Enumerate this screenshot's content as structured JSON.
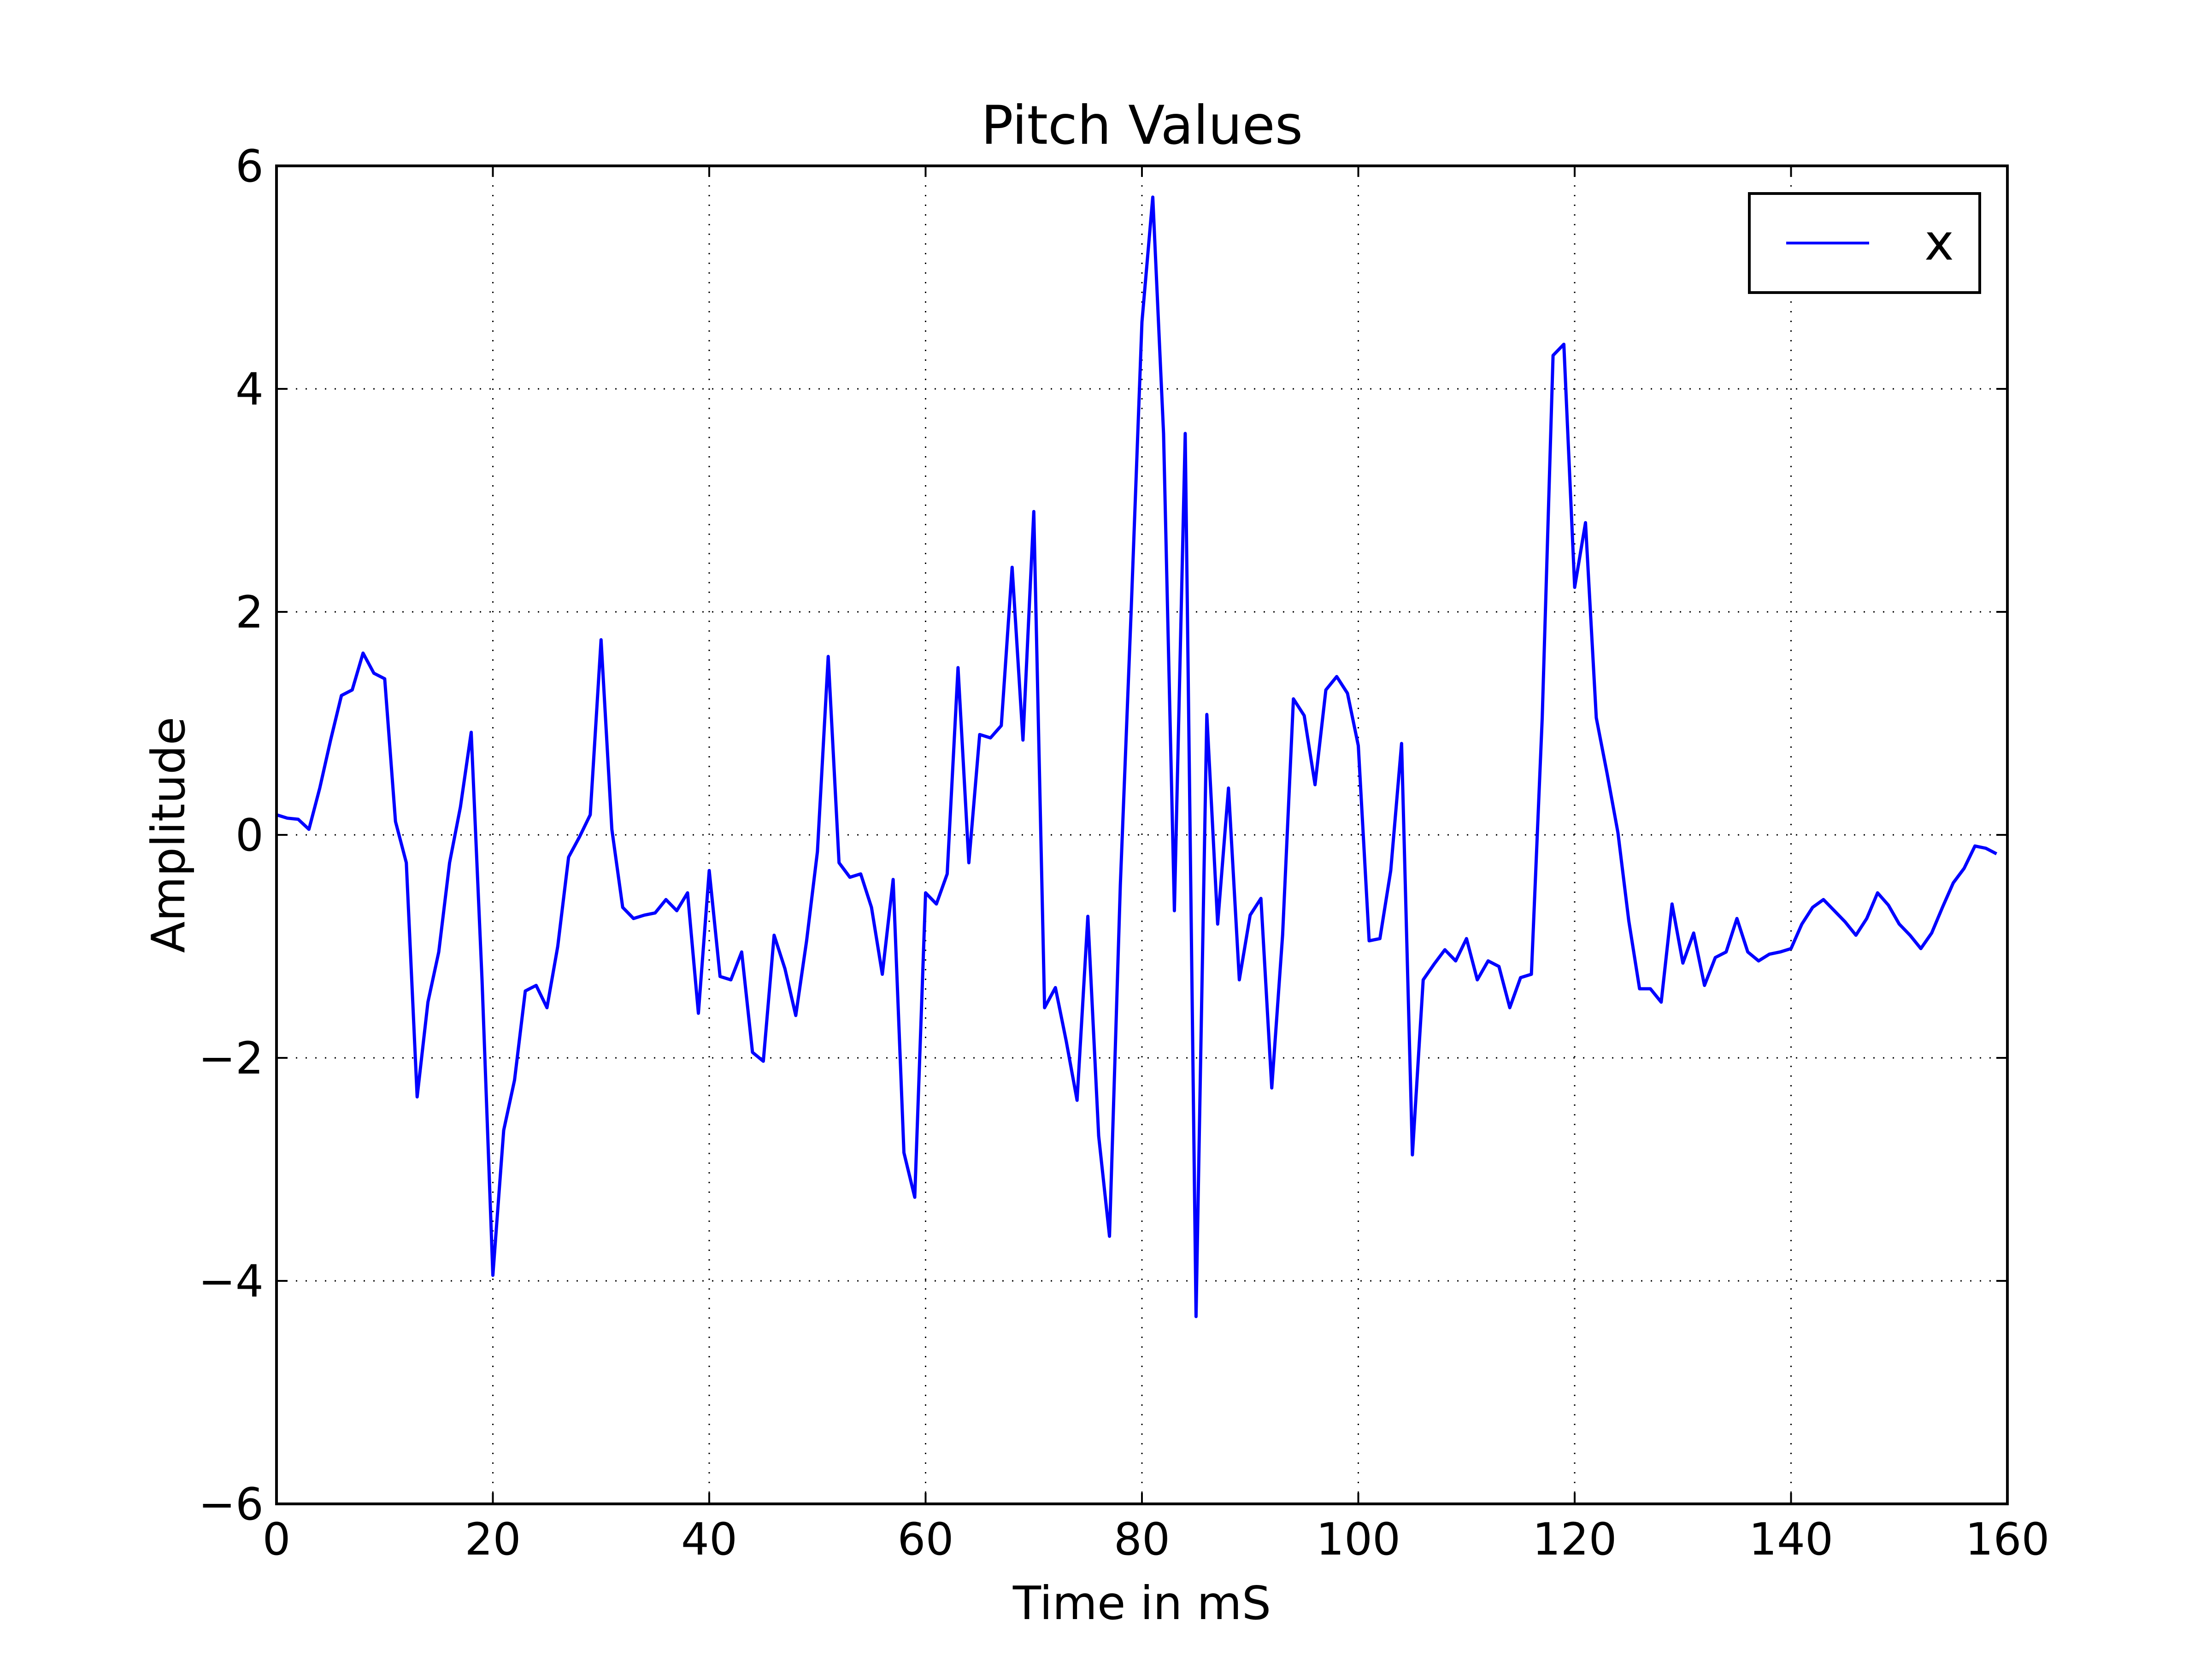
{
  "chart_data": {
    "type": "line",
    "title": "Pitch Values",
    "xlabel": "Time in mS",
    "ylabel": "Amplitude",
    "xlim": [
      0,
      160
    ],
    "ylim": [
      -6,
      6
    ],
    "xticks": [
      0,
      20,
      40,
      60,
      80,
      100,
      120,
      140,
      160
    ],
    "yticks": [
      -6,
      -4,
      -2,
      0,
      2,
      4,
      6
    ],
    "xtick_labels": [
      "0",
      "20",
      "40",
      "60",
      "80",
      "100",
      "120",
      "140",
      "160"
    ],
    "ytick_labels": [
      "−6",
      "−4",
      "−2",
      "0",
      "2",
      "4",
      "6"
    ],
    "grid": true,
    "legend_position": "top-right",
    "series": [
      {
        "name": "x",
        "color": "#0000ff",
        "x": [
          0,
          1,
          2,
          3,
          4,
          5,
          6,
          7,
          8,
          9,
          10,
          11,
          12,
          13,
          14,
          15,
          16,
          17,
          18,
          19,
          20,
          21,
          22,
          23,
          24,
          25,
          26,
          27,
          28,
          29,
          30,
          31,
          32,
          33,
          34,
          35,
          36,
          37,
          38,
          39,
          40,
          41,
          42,
          43,
          44,
          45,
          46,
          47,
          48,
          49,
          50,
          51,
          52,
          53,
          54,
          55,
          56,
          57,
          58,
          59,
          60,
          61,
          62,
          63,
          64,
          65,
          66,
          67,
          68,
          69,
          70,
          71,
          72,
          73,
          74,
          75,
          76,
          77,
          78,
          79,
          80,
          81,
          82,
          83,
          84,
          85,
          86,
          87,
          88,
          89,
          90,
          91,
          92,
          93,
          94,
          95,
          96,
          97,
          98,
          99,
          100,
          101,
          102,
          103,
          104,
          105,
          106,
          107,
          108,
          109,
          110,
          111,
          112,
          113,
          114,
          115,
          116,
          117,
          118,
          119,
          120,
          121,
          122,
          123,
          124,
          125,
          126,
          127,
          128,
          129,
          130,
          131,
          132,
          133,
          134,
          135,
          136,
          137,
          138,
          139,
          140,
          141,
          142,
          143,
          144,
          145,
          146,
          147,
          148,
          149,
          150,
          151,
          152,
          153,
          154,
          155,
          156,
          157,
          158,
          159
        ],
        "values": [
          0.18,
          0.15,
          0.14,
          0.05,
          0.42,
          0.85,
          1.25,
          1.3,
          1.63,
          1.45,
          1.4,
          0.12,
          -0.25,
          -2.35,
          -1.5,
          -1.05,
          -0.25,
          0.25,
          0.92,
          -1.3,
          -3.95,
          -2.65,
          -2.2,
          -1.4,
          -1.35,
          -1.55,
          -1.0,
          -0.2,
          -0.02,
          0.18,
          1.75,
          0.05,
          -0.65,
          -0.75,
          -0.72,
          -0.7,
          -0.58,
          -0.68,
          -0.52,
          -1.6,
          -0.32,
          -1.27,
          -1.3,
          -1.05,
          -1.95,
          -2.03,
          -0.9,
          -1.2,
          -1.62,
          -0.95,
          -0.15,
          1.6,
          -0.25,
          -0.38,
          -0.35,
          -0.65,
          -1.25,
          -0.4,
          -2.85,
          -3.25,
          -0.52,
          -0.62,
          -0.35,
          1.5,
          -0.25,
          0.9,
          0.87,
          0.98,
          2.4,
          0.85,
          2.9,
          -1.55,
          -1.37,
          -1.85,
          -2.38,
          -0.73,
          -2.7,
          -3.6,
          -0.45,
          2.0,
          4.6,
          5.72,
          3.6,
          -0.68,
          3.6,
          -4.32,
          1.08,
          -0.8,
          0.42,
          -1.3,
          -0.72,
          -0.57,
          -2.27,
          -0.9,
          1.22,
          1.07,
          0.45,
          1.3,
          1.42,
          1.27,
          0.8,
          -0.95,
          -0.93,
          -0.32,
          0.82,
          -2.87,
          -1.3,
          -1.16,
          -1.03,
          -1.13,
          -0.93,
          -1.3,
          -1.13,
          -1.18,
          -1.55,
          -1.28,
          -1.25,
          1.05,
          4.3,
          4.4,
          2.22,
          2.8,
          1.05,
          0.55,
          0.02,
          -0.77,
          -1.38,
          -1.38,
          -1.5,
          -0.62,
          -1.15,
          -0.88,
          -1.35,
          -1.1,
          -1.05,
          -0.75,
          -1.05,
          -1.13,
          -1.07,
          -1.05,
          -1.02,
          -0.8,
          -0.65,
          -0.58,
          -0.68,
          -0.78,
          -0.9,
          -0.75,
          -0.52,
          -0.63,
          -0.8,
          -0.9,
          -1.02,
          -0.88,
          -0.65,
          -0.43,
          -0.3,
          -0.1,
          -0.12,
          -0.17
        ]
      }
    ]
  }
}
